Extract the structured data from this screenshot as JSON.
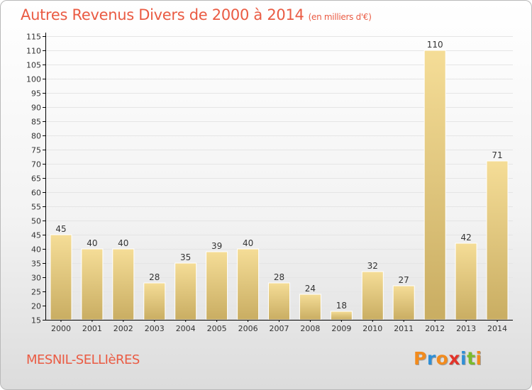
{
  "header": {
    "title": "Autres Revenus Divers de 2000 à 2014",
    "subtitle": "(en milliers d'€)"
  },
  "footer": {
    "place": "MESNIL-SELLIèRES",
    "logo_letters": [
      "P",
      "r",
      "o",
      "x",
      "i",
      "t",
      "i"
    ],
    "logo_colors": [
      "#f28b1d",
      "#2f8fd6",
      "#f28b1d",
      "#e2342a",
      "#2f8fd6",
      "#7bbb2b",
      "#f28b1d"
    ]
  },
  "colors": {
    "bar_light": "#f5dd97",
    "bar_dark": "#c9ad62",
    "grid": "#e5e5e5",
    "axis": "#000000",
    "text": "#333333",
    "accent": "#ea5b43"
  },
  "chart_data": {
    "type": "bar",
    "title": "Autres Revenus Divers de 2000 à 2014",
    "categories": [
      "2000",
      "2001",
      "2002",
      "2003",
      "2004",
      "2005",
      "2006",
      "2007",
      "2008",
      "2009",
      "2010",
      "2011",
      "2012",
      "2013",
      "2014"
    ],
    "values": [
      45,
      40,
      40,
      28,
      35,
      39,
      40,
      28,
      24,
      18,
      32,
      27,
      110,
      42,
      71
    ],
    "xlabel": "",
    "ylabel": "",
    "ylim": [
      15,
      115
    ],
    "ytick_step": 5,
    "grid": true,
    "data_labels": true
  }
}
